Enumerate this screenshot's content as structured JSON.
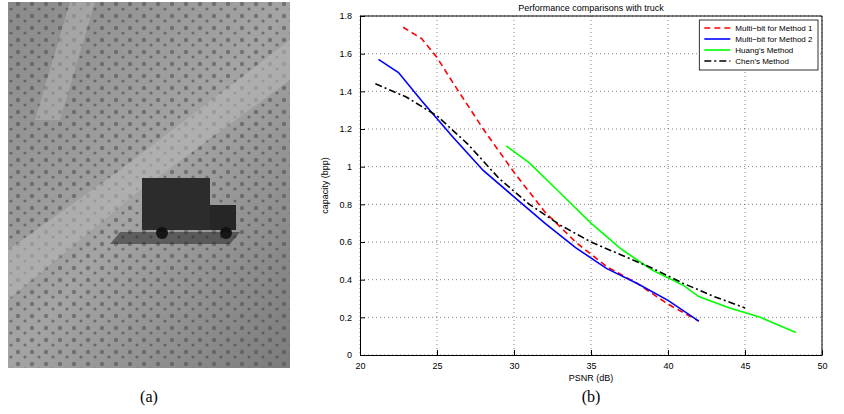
{
  "panels": {
    "labels": [
      "(a)",
      "(b)"
    ]
  },
  "chart_data": {
    "type": "line",
    "title": "Performance comparisons with truck",
    "x_label": "PSNR (dB)",
    "y_label": "capacity (bpp)",
    "xlim": [
      20,
      50
    ],
    "xticks": [
      20,
      25,
      30,
      35,
      40,
      45,
      50
    ],
    "ylim": [
      0,
      1.8
    ],
    "yticks": [
      0,
      0.2,
      0.4,
      0.6,
      0.8,
      1,
      1.2,
      1.4,
      1.6,
      1.8
    ],
    "grid": true,
    "legend": "upper right",
    "series": [
      {
        "name": "Multi−bit for Method 1",
        "color": "#ff0000",
        "line_style": "dashed",
        "x": [
          22.8,
          24,
          25,
          26,
          28,
          30,
          32,
          34,
          36,
          38,
          40,
          42
        ],
        "values": [
          1.74,
          1.68,
          1.58,
          1.45,
          1.2,
          0.97,
          0.76,
          0.6,
          0.47,
          0.38,
          0.27,
          0.18
        ]
      },
      {
        "name": "Multi−bit for Method 2",
        "color": "#0000ff",
        "line_style": "solid",
        "x": [
          21.2,
          22.5,
          24,
          26,
          28,
          30,
          32,
          34,
          36,
          38,
          40,
          42
        ],
        "values": [
          1.57,
          1.5,
          1.35,
          1.16,
          0.98,
          0.84,
          0.7,
          0.57,
          0.46,
          0.38,
          0.29,
          0.18
        ]
      },
      {
        "name": "Huang's Method",
        "color": "#00ff00",
        "line_style": "solid",
        "x": [
          29.5,
          31,
          33,
          35,
          37,
          39,
          41,
          42,
          44,
          46,
          48.3
        ],
        "values": [
          1.11,
          1.02,
          0.86,
          0.7,
          0.56,
          0.45,
          0.37,
          0.31,
          0.25,
          0.2,
          0.12
        ]
      },
      {
        "name": "Chen's Method",
        "color": "#000000",
        "line_style": "dashdot",
        "x": [
          21,
          23,
          25,
          27,
          29,
          31,
          33,
          35,
          37,
          39,
          41,
          43,
          45
        ],
        "values": [
          1.44,
          1.37,
          1.27,
          1.12,
          0.94,
          0.8,
          0.69,
          0.6,
          0.53,
          0.46,
          0.38,
          0.31,
          0.25
        ]
      }
    ]
  }
}
